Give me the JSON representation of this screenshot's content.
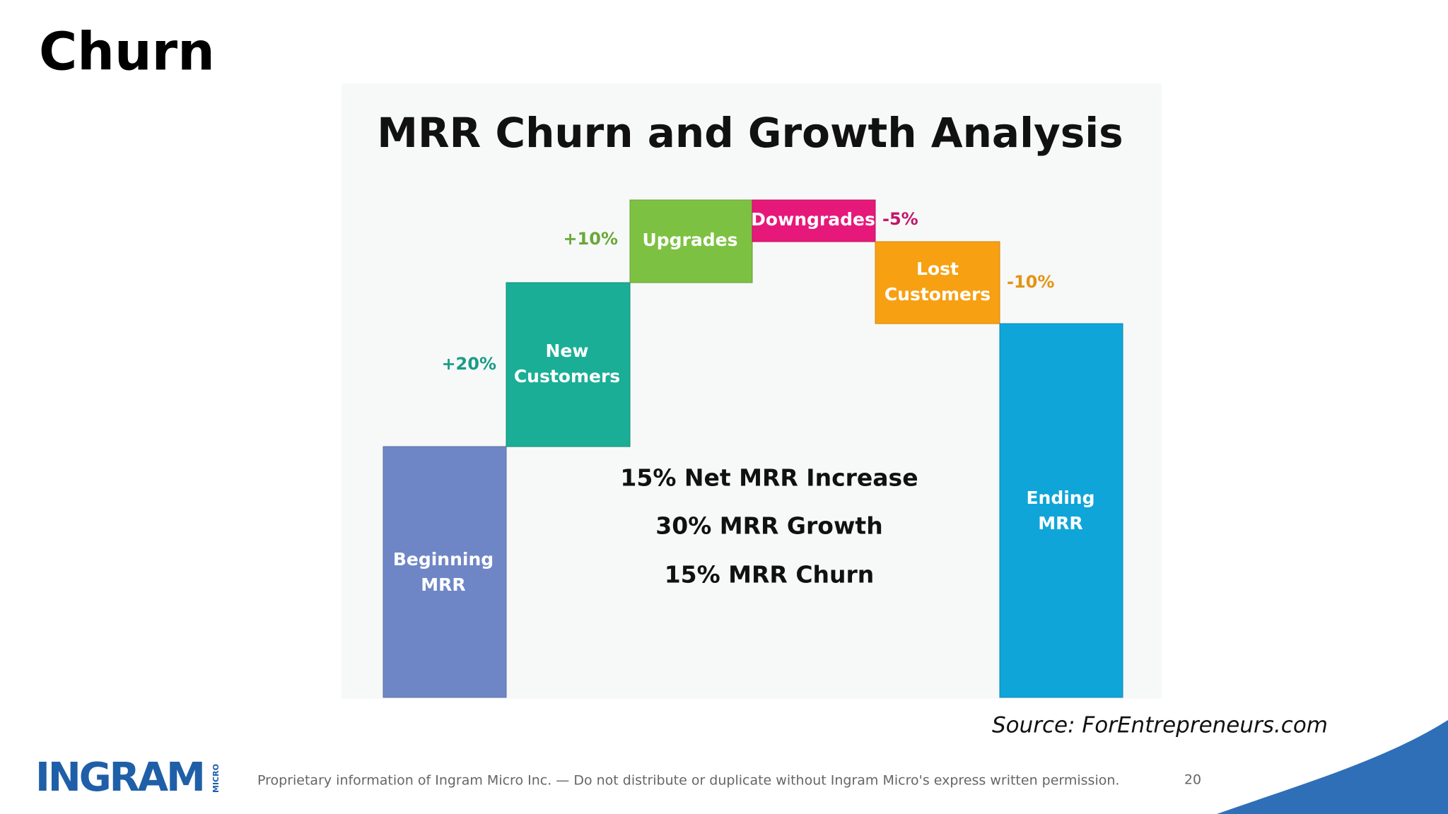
{
  "header": {
    "title": "Churn"
  },
  "figure": {
    "title": "MRR Churn and Growth Analysis",
    "steps": [
      {
        "label": [
          "Beginning",
          "MRR"
        ]
      },
      {
        "label": [
          "New",
          "Customers"
        ],
        "change": "+20%"
      },
      {
        "label": [
          "Upgrades"
        ],
        "change": "+10%"
      },
      {
        "label": [
          "Downgrades"
        ],
        "change": "-5%"
      },
      {
        "label": [
          "Lost",
          "Customers"
        ],
        "change": "-10%"
      },
      {
        "label": [
          "Ending",
          "MRR"
        ]
      }
    ],
    "summary": [
      "15% Net MRR Increase",
      "30% MRR Growth",
      "15% MRR Churn"
    ],
    "source": "Source: ForEntrepreneurs.com"
  },
  "footer": {
    "logo": {
      "name": "INGRAM",
      "sub": "MICRO"
    },
    "notice": "Proprietary information of Ingram Micro Inc. — Do not distribute or duplicate without Ingram Micro's express written permission.",
    "page_number": "20"
  }
}
